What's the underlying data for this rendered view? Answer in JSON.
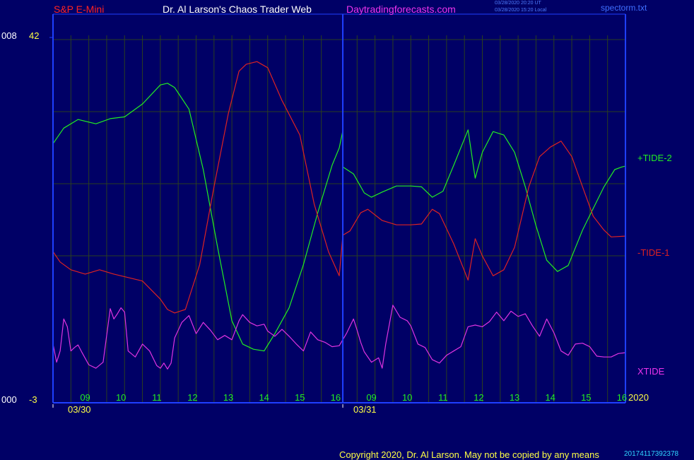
{
  "header": {
    "symbol": "S&P E-Mini",
    "site": "Dr. Al Larson's Chaos Trader Web",
    "url": "Daytradingforecasts.com",
    "timestamp_utc": "03/28/2020 20:20 UT",
    "timestamp_local": "03/28/2020 15:20 Local",
    "file": "spectorm.txt"
  },
  "footer": {
    "copyright": "Copyright 2020, Dr. Al Larson. May not be copied by any means",
    "code": "20174117392378"
  },
  "colors": {
    "background": "#000066",
    "frame": "#1f3fff",
    "grid": "#2a3e20",
    "tide2": "#22ee22",
    "tide1": "#dd2222",
    "xtide": "#e033e0",
    "axis_text": "#ffff44"
  },
  "chart_data": {
    "type": "line",
    "title": "S&P E-Mini",
    "y_axis_left": {
      "top": "008",
      "bottom": "000"
    },
    "y_axis_right": {
      "top": "42",
      "bottom": "-3"
    },
    "ylim": [
      -3,
      42
    ],
    "x_dates": [
      "03/30",
      "03/31"
    ],
    "x_hours_day1": [
      "09",
      "10",
      "11",
      "12",
      "13",
      "14",
      "15",
      "16"
    ],
    "x_hours_day2": [
      "09",
      "10",
      "11",
      "12",
      "13",
      "14",
      "15",
      "16"
    ],
    "year": "2020",
    "x_range": [
      8.0,
      24.0
    ],
    "series": [
      {
        "name": "+TIDE-2",
        "color": "#22ee22",
        "points": [
          [
            8.0,
            27.0
          ],
          [
            8.3,
            28.8
          ],
          [
            8.7,
            29.8
          ],
          [
            9.2,
            29.3
          ],
          [
            9.6,
            29.9
          ],
          [
            10.0,
            30.1
          ],
          [
            10.5,
            31.6
          ],
          [
            11.0,
            33.8
          ],
          [
            11.2,
            34.0
          ],
          [
            11.4,
            33.5
          ],
          [
            11.8,
            31.0
          ],
          [
            12.2,
            24.0
          ],
          [
            12.6,
            15.0
          ],
          [
            13.0,
            6.5
          ],
          [
            13.3,
            3.8
          ],
          [
            13.6,
            3.2
          ],
          [
            13.9,
            3.0
          ],
          [
            14.2,
            5.0
          ],
          [
            14.6,
            8.0
          ],
          [
            15.0,
            13.0
          ],
          [
            15.4,
            19.0
          ],
          [
            15.8,
            24.5
          ],
          [
            16.0,
            26.5
          ],
          [
            16.1,
            28.5
          ],
          [
            16.1,
            24.3
          ],
          [
            16.4,
            23.5
          ],
          [
            16.7,
            21.3
          ],
          [
            16.9,
            20.8
          ],
          [
            17.2,
            21.4
          ],
          [
            17.6,
            22.1
          ],
          [
            18.0,
            22.1
          ],
          [
            18.3,
            22.0
          ],
          [
            18.6,
            20.8
          ],
          [
            18.9,
            21.5
          ],
          [
            19.2,
            24.5
          ],
          [
            19.6,
            28.6
          ],
          [
            19.8,
            23.0
          ],
          [
            20.0,
            26.0
          ],
          [
            20.3,
            28.4
          ],
          [
            20.6,
            28.0
          ],
          [
            20.9,
            26.0
          ],
          [
            21.2,
            22.0
          ],
          [
            21.5,
            17.5
          ],
          [
            21.8,
            13.5
          ],
          [
            22.1,
            12.2
          ],
          [
            22.4,
            12.9
          ],
          [
            22.8,
            17.0
          ],
          [
            23.1,
            19.5
          ],
          [
            23.4,
            22.0
          ],
          [
            23.7,
            24.0
          ],
          [
            23.9,
            24.3
          ],
          [
            24.0,
            24.4
          ]
        ]
      },
      {
        "name": "-TIDE-1",
        "color": "#dd2222",
        "points": [
          [
            8.0,
            14.5
          ],
          [
            8.2,
            13.3
          ],
          [
            8.5,
            12.4
          ],
          [
            8.9,
            11.9
          ],
          [
            9.3,
            12.4
          ],
          [
            9.7,
            11.9
          ],
          [
            10.0,
            11.6
          ],
          [
            10.5,
            11.1
          ],
          [
            11.0,
            9.0
          ],
          [
            11.2,
            7.8
          ],
          [
            11.4,
            7.4
          ],
          [
            11.7,
            7.8
          ],
          [
            12.1,
            13.0
          ],
          [
            12.5,
            22.0
          ],
          [
            12.9,
            30.5
          ],
          [
            13.2,
            35.4
          ],
          [
            13.4,
            36.2
          ],
          [
            13.7,
            36.5
          ],
          [
            14.0,
            35.8
          ],
          [
            14.4,
            32.0
          ],
          [
            14.9,
            28.0
          ],
          [
            15.3,
            20.0
          ],
          [
            15.7,
            14.5
          ],
          [
            16.0,
            11.7
          ],
          [
            16.1,
            16.4
          ],
          [
            16.3,
            16.9
          ],
          [
            16.6,
            19.0
          ],
          [
            16.8,
            19.4
          ],
          [
            17.2,
            18.1
          ],
          [
            17.6,
            17.6
          ],
          [
            18.0,
            17.6
          ],
          [
            18.3,
            17.7
          ],
          [
            18.6,
            19.4
          ],
          [
            18.8,
            18.9
          ],
          [
            19.2,
            15.4
          ],
          [
            19.6,
            11.2
          ],
          [
            19.8,
            16.0
          ],
          [
            20.0,
            14.0
          ],
          [
            20.3,
            11.7
          ],
          [
            20.6,
            12.4
          ],
          [
            20.9,
            15.0
          ],
          [
            21.3,
            22.0
          ],
          [
            21.6,
            25.5
          ],
          [
            21.9,
            26.6
          ],
          [
            22.2,
            27.3
          ],
          [
            22.5,
            25.5
          ],
          [
            22.8,
            22.0
          ],
          [
            23.1,
            18.6
          ],
          [
            23.4,
            17.0
          ],
          [
            23.6,
            16.2
          ],
          [
            24.0,
            16.3
          ]
        ]
      },
      {
        "name": "XTIDE",
        "color": "#e033e0",
        "points": [
          [
            8.0,
            3.8
          ],
          [
            8.1,
            1.7
          ],
          [
            8.2,
            3.0
          ],
          [
            8.3,
            6.7
          ],
          [
            8.4,
            5.8
          ],
          [
            8.5,
            3.0
          ],
          [
            8.6,
            3.4
          ],
          [
            8.7,
            3.7
          ],
          [
            8.8,
            2.9
          ],
          [
            9.0,
            1.4
          ],
          [
            9.2,
            1.0
          ],
          [
            9.4,
            1.7
          ],
          [
            9.6,
            7.9
          ],
          [
            9.7,
            6.7
          ],
          [
            9.8,
            7.3
          ],
          [
            9.9,
            8.0
          ],
          [
            10.0,
            7.5
          ],
          [
            10.1,
            3.0
          ],
          [
            10.3,
            2.3
          ],
          [
            10.5,
            3.8
          ],
          [
            10.7,
            3.0
          ],
          [
            10.9,
            1.3
          ],
          [
            11.0,
            1.0
          ],
          [
            11.1,
            1.6
          ],
          [
            11.2,
            0.9
          ],
          [
            11.3,
            1.6
          ],
          [
            11.4,
            4.5
          ],
          [
            11.6,
            6.3
          ],
          [
            11.8,
            7.1
          ],
          [
            12.0,
            5.0
          ],
          [
            12.2,
            6.3
          ],
          [
            12.4,
            5.4
          ],
          [
            12.6,
            4.3
          ],
          [
            12.8,
            4.8
          ],
          [
            13.0,
            4.3
          ],
          [
            13.2,
            6.5
          ],
          [
            13.3,
            7.2
          ],
          [
            13.5,
            6.3
          ],
          [
            13.7,
            5.9
          ],
          [
            13.9,
            6.1
          ],
          [
            14.0,
            5.3
          ],
          [
            14.2,
            4.7
          ],
          [
            14.4,
            5.5
          ],
          [
            14.6,
            4.7
          ],
          [
            14.8,
            3.8
          ],
          [
            15.0,
            3.0
          ],
          [
            15.2,
            5.2
          ],
          [
            15.4,
            4.3
          ],
          [
            15.6,
            4.0
          ],
          [
            15.8,
            3.5
          ],
          [
            16.0,
            3.6
          ],
          [
            16.2,
            5.0
          ],
          [
            16.4,
            6.7
          ],
          [
            16.5,
            5.4
          ],
          [
            16.6,
            4.0
          ],
          [
            16.7,
            2.9
          ],
          [
            16.9,
            1.7
          ],
          [
            17.1,
            2.2
          ],
          [
            17.2,
            1.0
          ],
          [
            17.3,
            3.8
          ],
          [
            17.5,
            8.3
          ],
          [
            17.7,
            6.9
          ],
          [
            17.9,
            6.5
          ],
          [
            18.0,
            5.9
          ],
          [
            18.2,
            3.8
          ],
          [
            18.4,
            3.4
          ],
          [
            18.6,
            2.0
          ],
          [
            18.8,
            1.6
          ],
          [
            19.0,
            2.5
          ],
          [
            19.2,
            3.0
          ],
          [
            19.4,
            3.5
          ],
          [
            19.6,
            5.8
          ],
          [
            19.8,
            6.0
          ],
          [
            20.0,
            5.8
          ],
          [
            20.2,
            6.4
          ],
          [
            20.4,
            7.5
          ],
          [
            20.6,
            6.5
          ],
          [
            20.8,
            7.6
          ],
          [
            21.0,
            7.0
          ],
          [
            21.2,
            7.3
          ],
          [
            21.4,
            5.9
          ],
          [
            21.6,
            4.7
          ],
          [
            21.8,
            6.7
          ],
          [
            22.0,
            5.1
          ],
          [
            22.2,
            3.0
          ],
          [
            22.4,
            2.5
          ],
          [
            22.6,
            3.8
          ],
          [
            22.8,
            3.9
          ],
          [
            23.0,
            3.5
          ],
          [
            23.2,
            2.4
          ],
          [
            23.4,
            2.3
          ],
          [
            23.6,
            2.3
          ],
          [
            23.8,
            2.7
          ],
          [
            24.0,
            2.8
          ]
        ]
      }
    ]
  }
}
